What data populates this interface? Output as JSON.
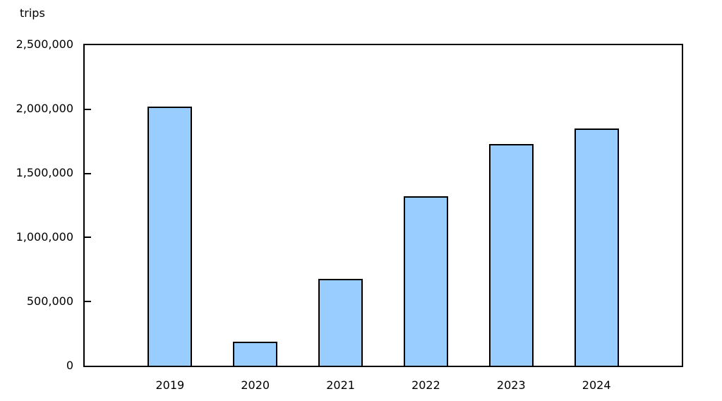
{
  "chart_data": {
    "type": "bar",
    "title": "",
    "ylabel": "trips",
    "xlabel": "",
    "categories": [
      "2019",
      "2020",
      "2021",
      "2022",
      "2023",
      "2024"
    ],
    "values": [
      2020000,
      185000,
      675000,
      1320000,
      1730000,
      1850000
    ],
    "ylim": [
      0,
      2500000
    ],
    "yticks": [
      0,
      500000,
      1000000,
      1500000,
      2000000,
      2500000
    ],
    "ytick_labels": [
      "0",
      "500,000",
      "1,000,000",
      "1,500,000",
      "2,000,000",
      "2,500,000"
    ],
    "grid": false,
    "legend": "none",
    "bar_fill_color": "#99ccff",
    "bar_border_color": "#000000",
    "axis_color": "#000000",
    "background_color": "#ffffff"
  }
}
